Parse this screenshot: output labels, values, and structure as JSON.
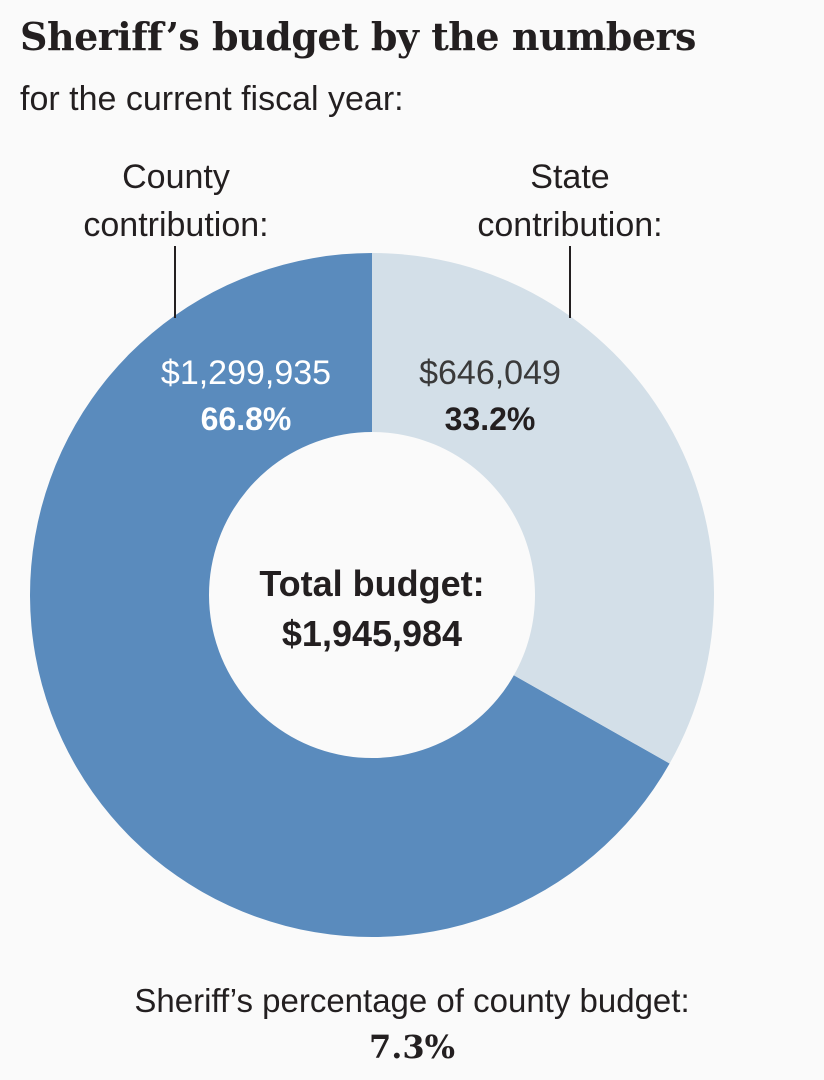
{
  "title": "Sheriff’s budget by the numbers",
  "subtitle": "for the current fiscal year:",
  "chart_data": {
    "type": "pie",
    "variant": "donut",
    "categories": [
      "County contribution:",
      "State contribution:"
    ],
    "label_lines": [
      [
        "County",
        "contribution:"
      ],
      [
        "State",
        "contribution:"
      ]
    ],
    "values": [
      1299935,
      646049
    ],
    "value_labels": [
      "$1,299,935",
      "$646,049"
    ],
    "percent_labels": [
      "66.8%",
      "33.2%"
    ],
    "colors": [
      "#5a8bbd",
      "#d3dfe8"
    ],
    "center_label": [
      "Total budget:",
      "$1,945,984"
    ],
    "total": 1945984
  },
  "footnote": {
    "label": "Sheriff’s percentage of county budget:",
    "value": "7.3%"
  }
}
